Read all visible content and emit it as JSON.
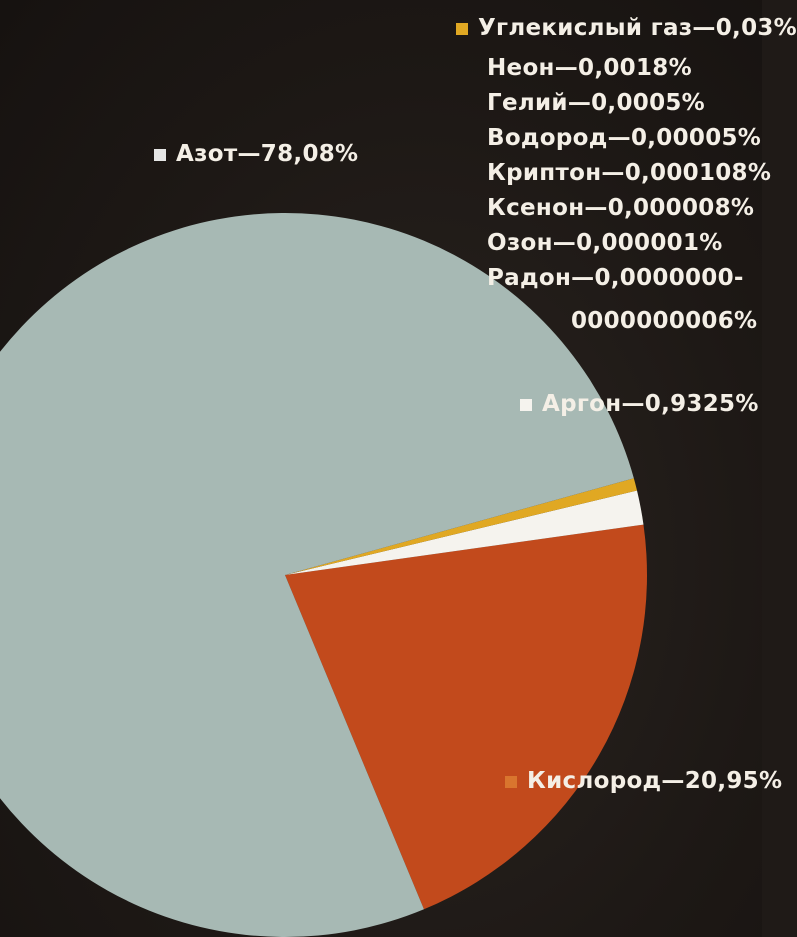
{
  "chart_data": {
    "type": "pie",
    "slices": [
      {
        "label": "Азот—78,08%",
        "value": 78.08,
        "color": "#a7b9b4"
      },
      {
        "label": "Кислород—20,95%",
        "value": 20.95,
        "color": "#c24a1c"
      },
      {
        "label": "Аргон—0,9325%",
        "value": 0.9325,
        "color": "#f5f3ee"
      },
      {
        "label": "Углекислый газ—0,03%",
        "value": 0.03,
        "color": "#e0a823"
      }
    ],
    "legend_other": [
      "Неон—0,0018%",
      "Гелий—0,0005%",
      "Водород—0,00005%",
      "Криптон—0,000108%",
      "Ксенон—0,000008%",
      "Озон—0,000001%",
      "Радон—0,0000000-",
      "0000000006%"
    ]
  }
}
